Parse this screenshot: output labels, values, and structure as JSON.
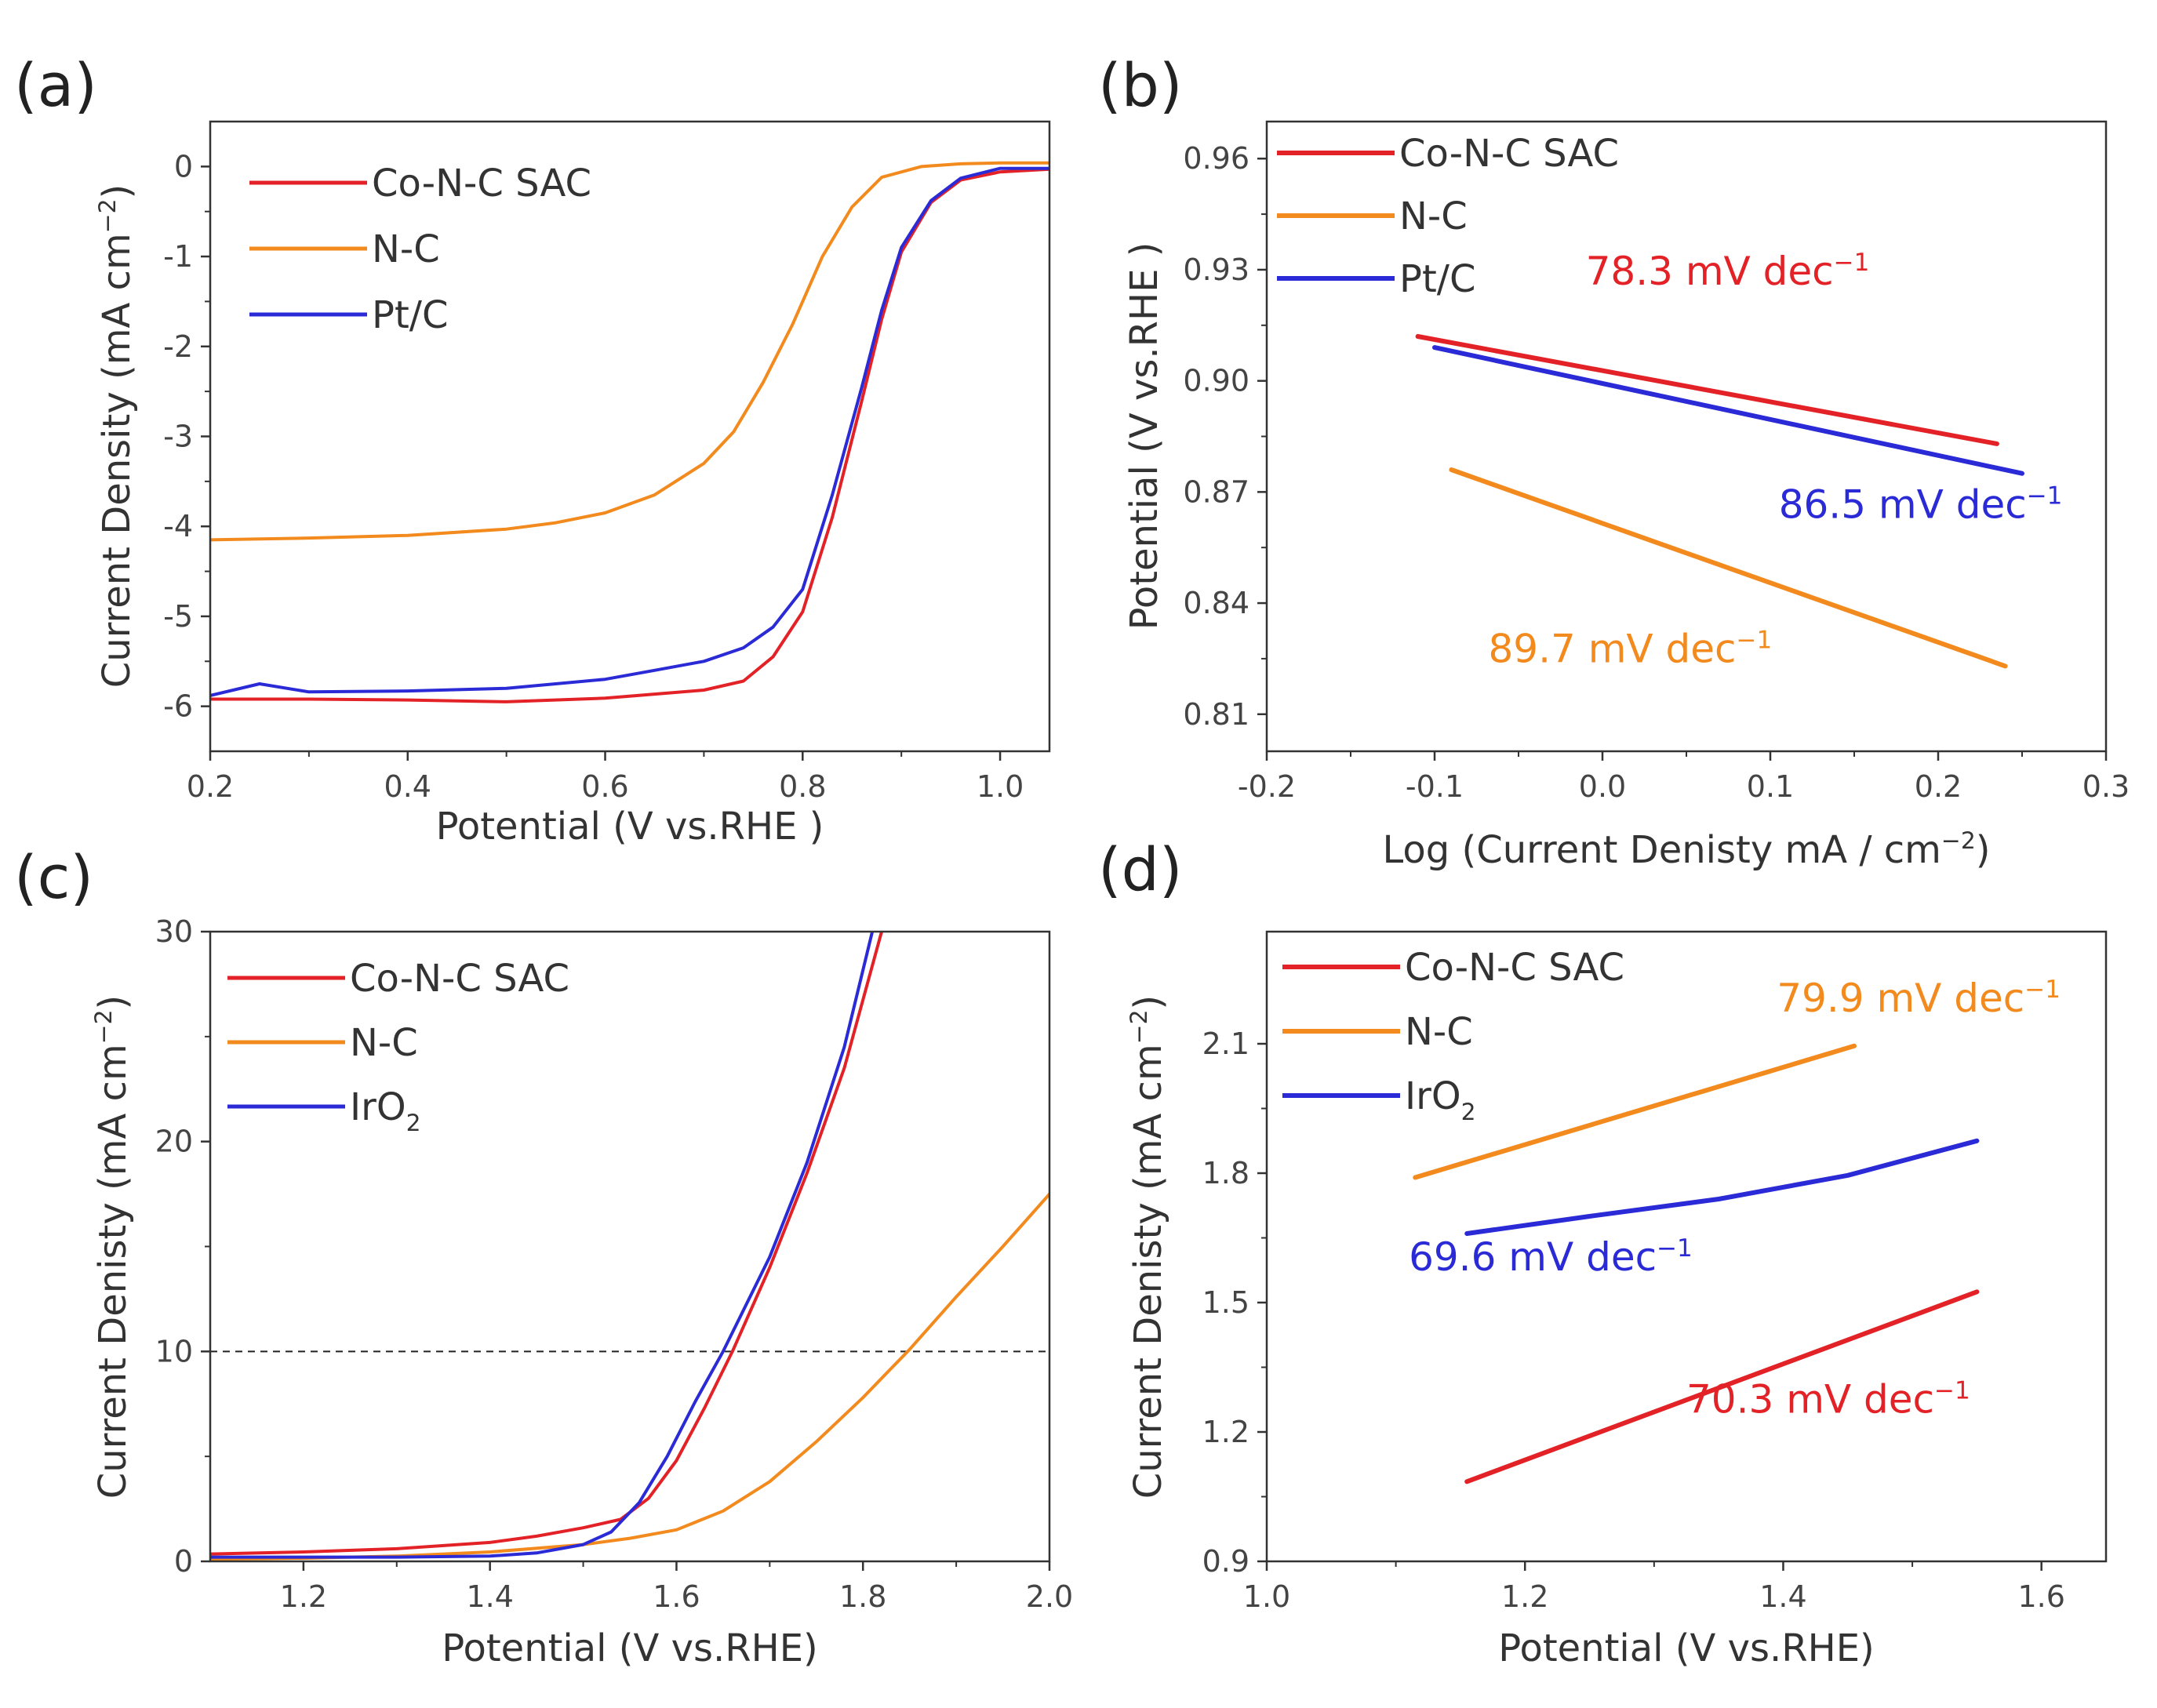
{
  "chart_data": [
    {
      "panel": "(a)",
      "type": "line",
      "xlabel": "Potential (V vs.RHE )",
      "ylabel": "Current Density (mA cm",
      "ylabel_sup": "−2",
      "ylabel_end": ")",
      "xlim": [
        0.2,
        1.05
      ],
      "ylim": [
        -6.5,
        0.5
      ],
      "xticks": [
        0.2,
        0.4,
        0.6,
        0.8,
        1.0
      ],
      "xtick_labels": [
        "0.2",
        "0.4",
        "0.6",
        "0.8",
        "1.0"
      ],
      "yticks": [
        0,
        -1,
        -2,
        -3,
        -4,
        -5,
        -6
      ],
      "ytick_labels": [
        "0",
        "-1",
        "-2",
        "-3",
        "-4",
        "-5",
        "-6"
      ],
      "legend_position": "top-left",
      "series": [
        {
          "name": "Co-N-C SAC",
          "color": "#e32227",
          "x": [
            0.2,
            0.3,
            0.4,
            0.5,
            0.6,
            0.7,
            0.74,
            0.77,
            0.8,
            0.83,
            0.86,
            0.88,
            0.9,
            0.93,
            0.96,
            1.0,
            1.05
          ],
          "y": [
            -5.92,
            -5.92,
            -5.93,
            -5.95,
            -5.91,
            -5.82,
            -5.72,
            -5.45,
            -4.95,
            -3.9,
            -2.6,
            -1.7,
            -0.95,
            -0.4,
            -0.15,
            -0.06,
            -0.03
          ]
        },
        {
          "name": "N-C",
          "color": "#f28a1e",
          "x": [
            0.2,
            0.3,
            0.4,
            0.5,
            0.55,
            0.6,
            0.65,
            0.7,
            0.73,
            0.76,
            0.79,
            0.82,
            0.85,
            0.88,
            0.92,
            0.96,
            1.0,
            1.05
          ],
          "y": [
            -4.15,
            -4.13,
            -4.1,
            -4.03,
            -3.96,
            -3.85,
            -3.65,
            -3.3,
            -2.95,
            -2.4,
            -1.75,
            -1.0,
            -0.45,
            -0.12,
            0.0,
            0.03,
            0.04,
            0.04
          ]
        },
        {
          "name": "Pt/C",
          "color": "#2a2ad6",
          "x": [
            0.2,
            0.25,
            0.3,
            0.4,
            0.5,
            0.6,
            0.65,
            0.7,
            0.74,
            0.77,
            0.8,
            0.83,
            0.86,
            0.88,
            0.9,
            0.93,
            0.96,
            1.0,
            1.05
          ],
          "y": [
            -5.88,
            -5.75,
            -5.84,
            -5.83,
            -5.8,
            -5.7,
            -5.6,
            -5.5,
            -5.35,
            -5.12,
            -4.7,
            -3.65,
            -2.45,
            -1.6,
            -0.9,
            -0.38,
            -0.13,
            -0.02,
            -0.02
          ]
        }
      ]
    },
    {
      "panel": "(b)",
      "type": "line",
      "xlabel": "Log (Current Denisty mA / cm",
      "xlabel_sup": "−2",
      "xlabel_end": ")",
      "ylabel": "Potential (V vs.RHE )",
      "xlim": [
        -0.2,
        0.3
      ],
      "ylim": [
        0.8,
        0.97
      ],
      "xticks": [
        -0.2,
        -0.1,
        0.0,
        0.1,
        0.2,
        0.3
      ],
      "xtick_labels": [
        "-0.2",
        "-0.1",
        "0.0",
        "0.1",
        "0.2",
        "0.3"
      ],
      "yticks": [
        0.81,
        0.84,
        0.87,
        0.9,
        0.93,
        0.96
      ],
      "ytick_labels": [
        "0.81",
        "0.84",
        "0.87",
        "0.90",
        "0.93",
        "0.96"
      ],
      "legend_position": "top-left",
      "series": [
        {
          "name": "Co-N-C SAC",
          "color": "#e32227",
          "x": [
            -0.11,
            0.235
          ],
          "y": [
            0.912,
            0.883
          ]
        },
        {
          "name": "N-C",
          "color": "#f28a1e",
          "x": [
            -0.09,
            0.24
          ],
          "y": [
            0.876,
            0.823
          ]
        },
        {
          "name": "Pt/C",
          "color": "#2a2ad6",
          "x": [
            -0.1,
            0.25
          ],
          "y": [
            0.909,
            0.875
          ]
        }
      ],
      "annotations": [
        {
          "text": "78.3 mV dec",
          "sup": "−1",
          "color": "#e32227",
          "x": -0.01,
          "y": 0.926
        },
        {
          "text": "86.5 mV dec",
          "sup": "−1",
          "color": "#2a2ad6",
          "x": 0.105,
          "y": 0.863
        },
        {
          "text": "89.7 mV dec",
          "sup": "−1",
          "color": "#f28a1e",
          "x": -0.068,
          "y": 0.824
        }
      ]
    },
    {
      "panel": "(c)",
      "type": "line",
      "xlabel": "Potential (V vs.RHE)",
      "ylabel": "Current Denisty (mA cm",
      "ylabel_sup": "−2",
      "ylabel_end": ")",
      "xlim": [
        1.1,
        2.0
      ],
      "ylim": [
        0,
        30
      ],
      "xticks": [
        1.2,
        1.4,
        1.6,
        1.8,
        2.0
      ],
      "xtick_labels": [
        "1.2",
        "1.4",
        "1.6",
        "1.8",
        "2.0"
      ],
      "yticks": [
        0,
        10,
        20,
        30
      ],
      "ytick_labels": [
        "0",
        "10",
        "20",
        "30"
      ],
      "reference_line_y": 10,
      "legend_position": "top-left",
      "series": [
        {
          "name": "Co-N-C SAC",
          "color": "#e32227",
          "x": [
            1.1,
            1.2,
            1.3,
            1.4,
            1.45,
            1.5,
            1.54,
            1.57,
            1.6,
            1.63,
            1.66,
            1.7,
            1.74,
            1.78,
            1.82
          ],
          "y": [
            0.35,
            0.45,
            0.6,
            0.9,
            1.2,
            1.6,
            2.0,
            3.0,
            4.8,
            7.3,
            10.0,
            14.0,
            18.5,
            23.5,
            30.0
          ]
        },
        {
          "name": "N-C",
          "color": "#f28a1e",
          "x": [
            1.1,
            1.2,
            1.3,
            1.4,
            1.5,
            1.55,
            1.6,
            1.65,
            1.7,
            1.75,
            1.8,
            1.85,
            1.9,
            1.95,
            2.0
          ],
          "y": [
            0.1,
            0.15,
            0.25,
            0.45,
            0.8,
            1.1,
            1.5,
            2.4,
            3.8,
            5.7,
            7.8,
            10.1,
            12.6,
            15.0,
            17.5
          ]
        },
        {
          "name": "IrO",
          "name_sub": "2",
          "color": "#2a2ad6",
          "x": [
            1.1,
            1.2,
            1.3,
            1.4,
            1.45,
            1.5,
            1.53,
            1.56,
            1.59,
            1.62,
            1.65,
            1.7,
            1.74,
            1.78,
            1.81
          ],
          "y": [
            0.2,
            0.2,
            0.2,
            0.25,
            0.4,
            0.8,
            1.4,
            2.8,
            5.0,
            7.6,
            10.0,
            14.5,
            19.0,
            24.5,
            30.0
          ]
        }
      ]
    },
    {
      "panel": "(d)",
      "type": "line",
      "xlabel": "Potential (V vs.RHE)",
      "ylabel": "Current Denisty (mA cm",
      "ylabel_sup": "−2",
      "ylabel_end": ")",
      "xlim": [
        1.0,
        1.65
      ],
      "ylim": [
        0.9,
        2.36
      ],
      "xticks": [
        1.0,
        1.2,
        1.4,
        1.6
      ],
      "xtick_labels": [
        "1.0",
        "1.2",
        "1.4",
        "1.6"
      ],
      "yticks": [
        0.9,
        1.2,
        1.5,
        1.8,
        2.1
      ],
      "ytick_labels": [
        "0.9",
        "1.2",
        "1.5",
        "1.8",
        "2.1"
      ],
      "legend_position": "top-left",
      "series": [
        {
          "name": "Co-N-C SAC",
          "color": "#e32227",
          "x": [
            1.155,
            1.55
          ],
          "y": [
            1.085,
            1.525
          ]
        },
        {
          "name": "N-C",
          "color": "#f28a1e",
          "x": [
            1.115,
            1.455
          ],
          "y": [
            1.79,
            2.095
          ]
        },
        {
          "name": "IrO",
          "name_sub": "2",
          "color": "#2a2ad6",
          "x": [
            1.155,
            1.25,
            1.35,
            1.45,
            1.55
          ],
          "y": [
            1.66,
            1.7,
            1.74,
            1.795,
            1.875
          ]
        }
      ],
      "annotations": [
        {
          "text": "79.9 mV dec",
          "sup": "−1",
          "color": "#f28a1e",
          "x": 1.395,
          "y": 2.175
        },
        {
          "text": "69.6 mV dec",
          "sup": "−1",
          "color": "#2a2ad6",
          "x": 1.11,
          "y": 1.575
        },
        {
          "text": "70.3 mV dec",
          "sup": "−1",
          "color": "#e32227",
          "x": 1.325,
          "y": 1.245
        }
      ]
    }
  ]
}
